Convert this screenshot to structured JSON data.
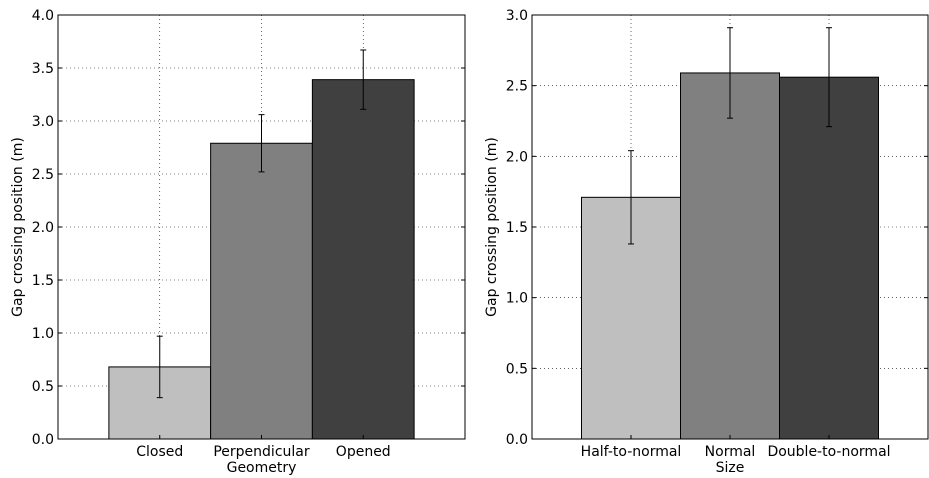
{
  "chart_data": [
    {
      "type": "bar",
      "title": "",
      "xlabel": "Geometry",
      "ylabel": "Gap crossing position (m)",
      "categories": [
        "Closed",
        "Perpendicular",
        "Opened"
      ],
      "values": [
        0.68,
        2.79,
        3.39
      ],
      "error": [
        0.29,
        0.27,
        0.28
      ],
      "colors": [
        "#bfbfbf",
        "#808080",
        "#404040"
      ],
      "ylim": [
        0,
        4.0
      ],
      "yticks": [
        "0.0",
        "0.5",
        "1.0",
        "1.5",
        "2.0",
        "2.5",
        "3.0",
        "3.5",
        "4.0"
      ],
      "grid": true
    },
    {
      "type": "bar",
      "title": "",
      "xlabel": "Size",
      "ylabel": "Gap crossing position (m)",
      "categories": [
        "Half-to-normal",
        "Normal",
        "Double-to-normal"
      ],
      "values": [
        1.71,
        2.59,
        2.56
      ],
      "error": [
        0.33,
        0.32,
        0.35
      ],
      "colors": [
        "#bfbfbf",
        "#808080",
        "#404040"
      ],
      "ylim": [
        0,
        3.0
      ],
      "yticks": [
        "0.0",
        "0.5",
        "1.0",
        "1.5",
        "2.0",
        "2.5",
        "3.0"
      ],
      "grid": true
    }
  ]
}
